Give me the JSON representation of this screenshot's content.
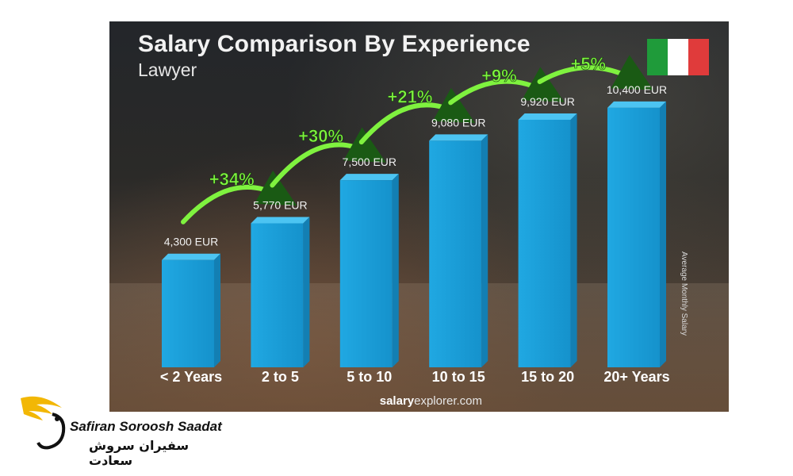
{
  "chart_data": {
    "type": "bar",
    "title": "Salary Comparison By Experience",
    "subtitle": "Lawyer",
    "ylabel": "Average Monthly Salary",
    "categories": [
      "< 2 Years",
      "2 to 5",
      "5 to 10",
      "10 to 15",
      "15 to 20",
      "20+ Years"
    ],
    "values": [
      4300,
      5770,
      7500,
      9080,
      9920,
      10400
    ],
    "value_labels": [
      "4,300 EUR",
      "5,770 EUR",
      "7,500 EUR",
      "9,080 EUR",
      "9,920 EUR",
      "10,400 EUR"
    ],
    "changes": [
      "+34%",
      "+30%",
      "+21%",
      "+9%",
      "+5%"
    ],
    "unit": "EUR",
    "grid": false,
    "legend": "none",
    "ylim": [
      0,
      11000
    ],
    "colors": {
      "bar": "#20a8e2",
      "change": "#7ff23f",
      "category_emphasis": "#2ab7f0",
      "flag": [
        "#1f9b3a",
        "#ffffff",
        "#e03b3b"
      ]
    }
  },
  "source": {
    "bold": "salary",
    "light": "explorer.com"
  },
  "logo": {
    "name_en": "Safiran Soroosh Saadat",
    "name_fa": "سفیران سروش سعادت"
  }
}
